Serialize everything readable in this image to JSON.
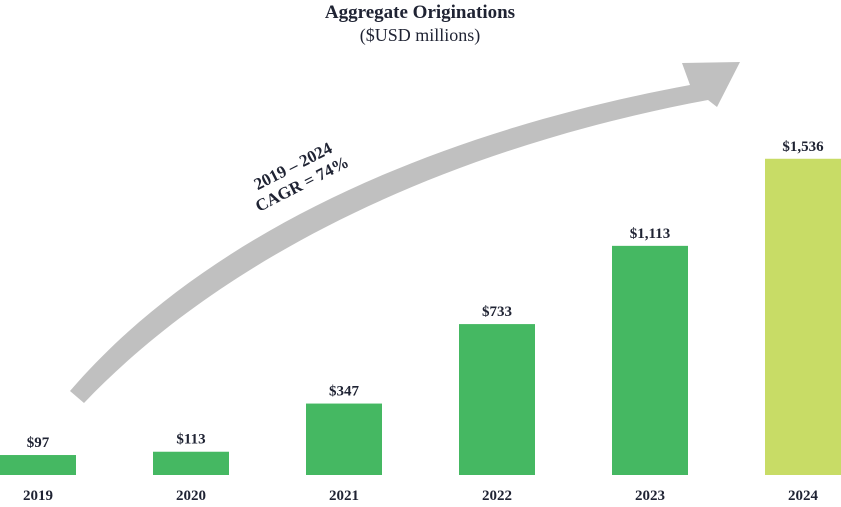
{
  "chart_data": {
    "type": "bar",
    "title": "Aggregate Originations",
    "subtitle": "($USD millions)",
    "categories": [
      "2019",
      "2020",
      "2021",
      "2022",
      "2023",
      "2024"
    ],
    "values": [
      97,
      113,
      347,
      733,
      1113,
      1536
    ],
    "value_labels": [
      "$97",
      "$113",
      "$347",
      "$733",
      "$1,113",
      "$1,536"
    ],
    "ylim": [
      0,
      1700
    ],
    "grid": false,
    "legend": "none",
    "annotation": {
      "line1": "2019 – 2024",
      "line2": "CAGR = 74%"
    },
    "colors": {
      "bar": "#45b862",
      "highlight_bar": "#c8dc66",
      "arrow": "#c0c0c0",
      "text": "#1f2333"
    },
    "highlight_category": "2024"
  }
}
